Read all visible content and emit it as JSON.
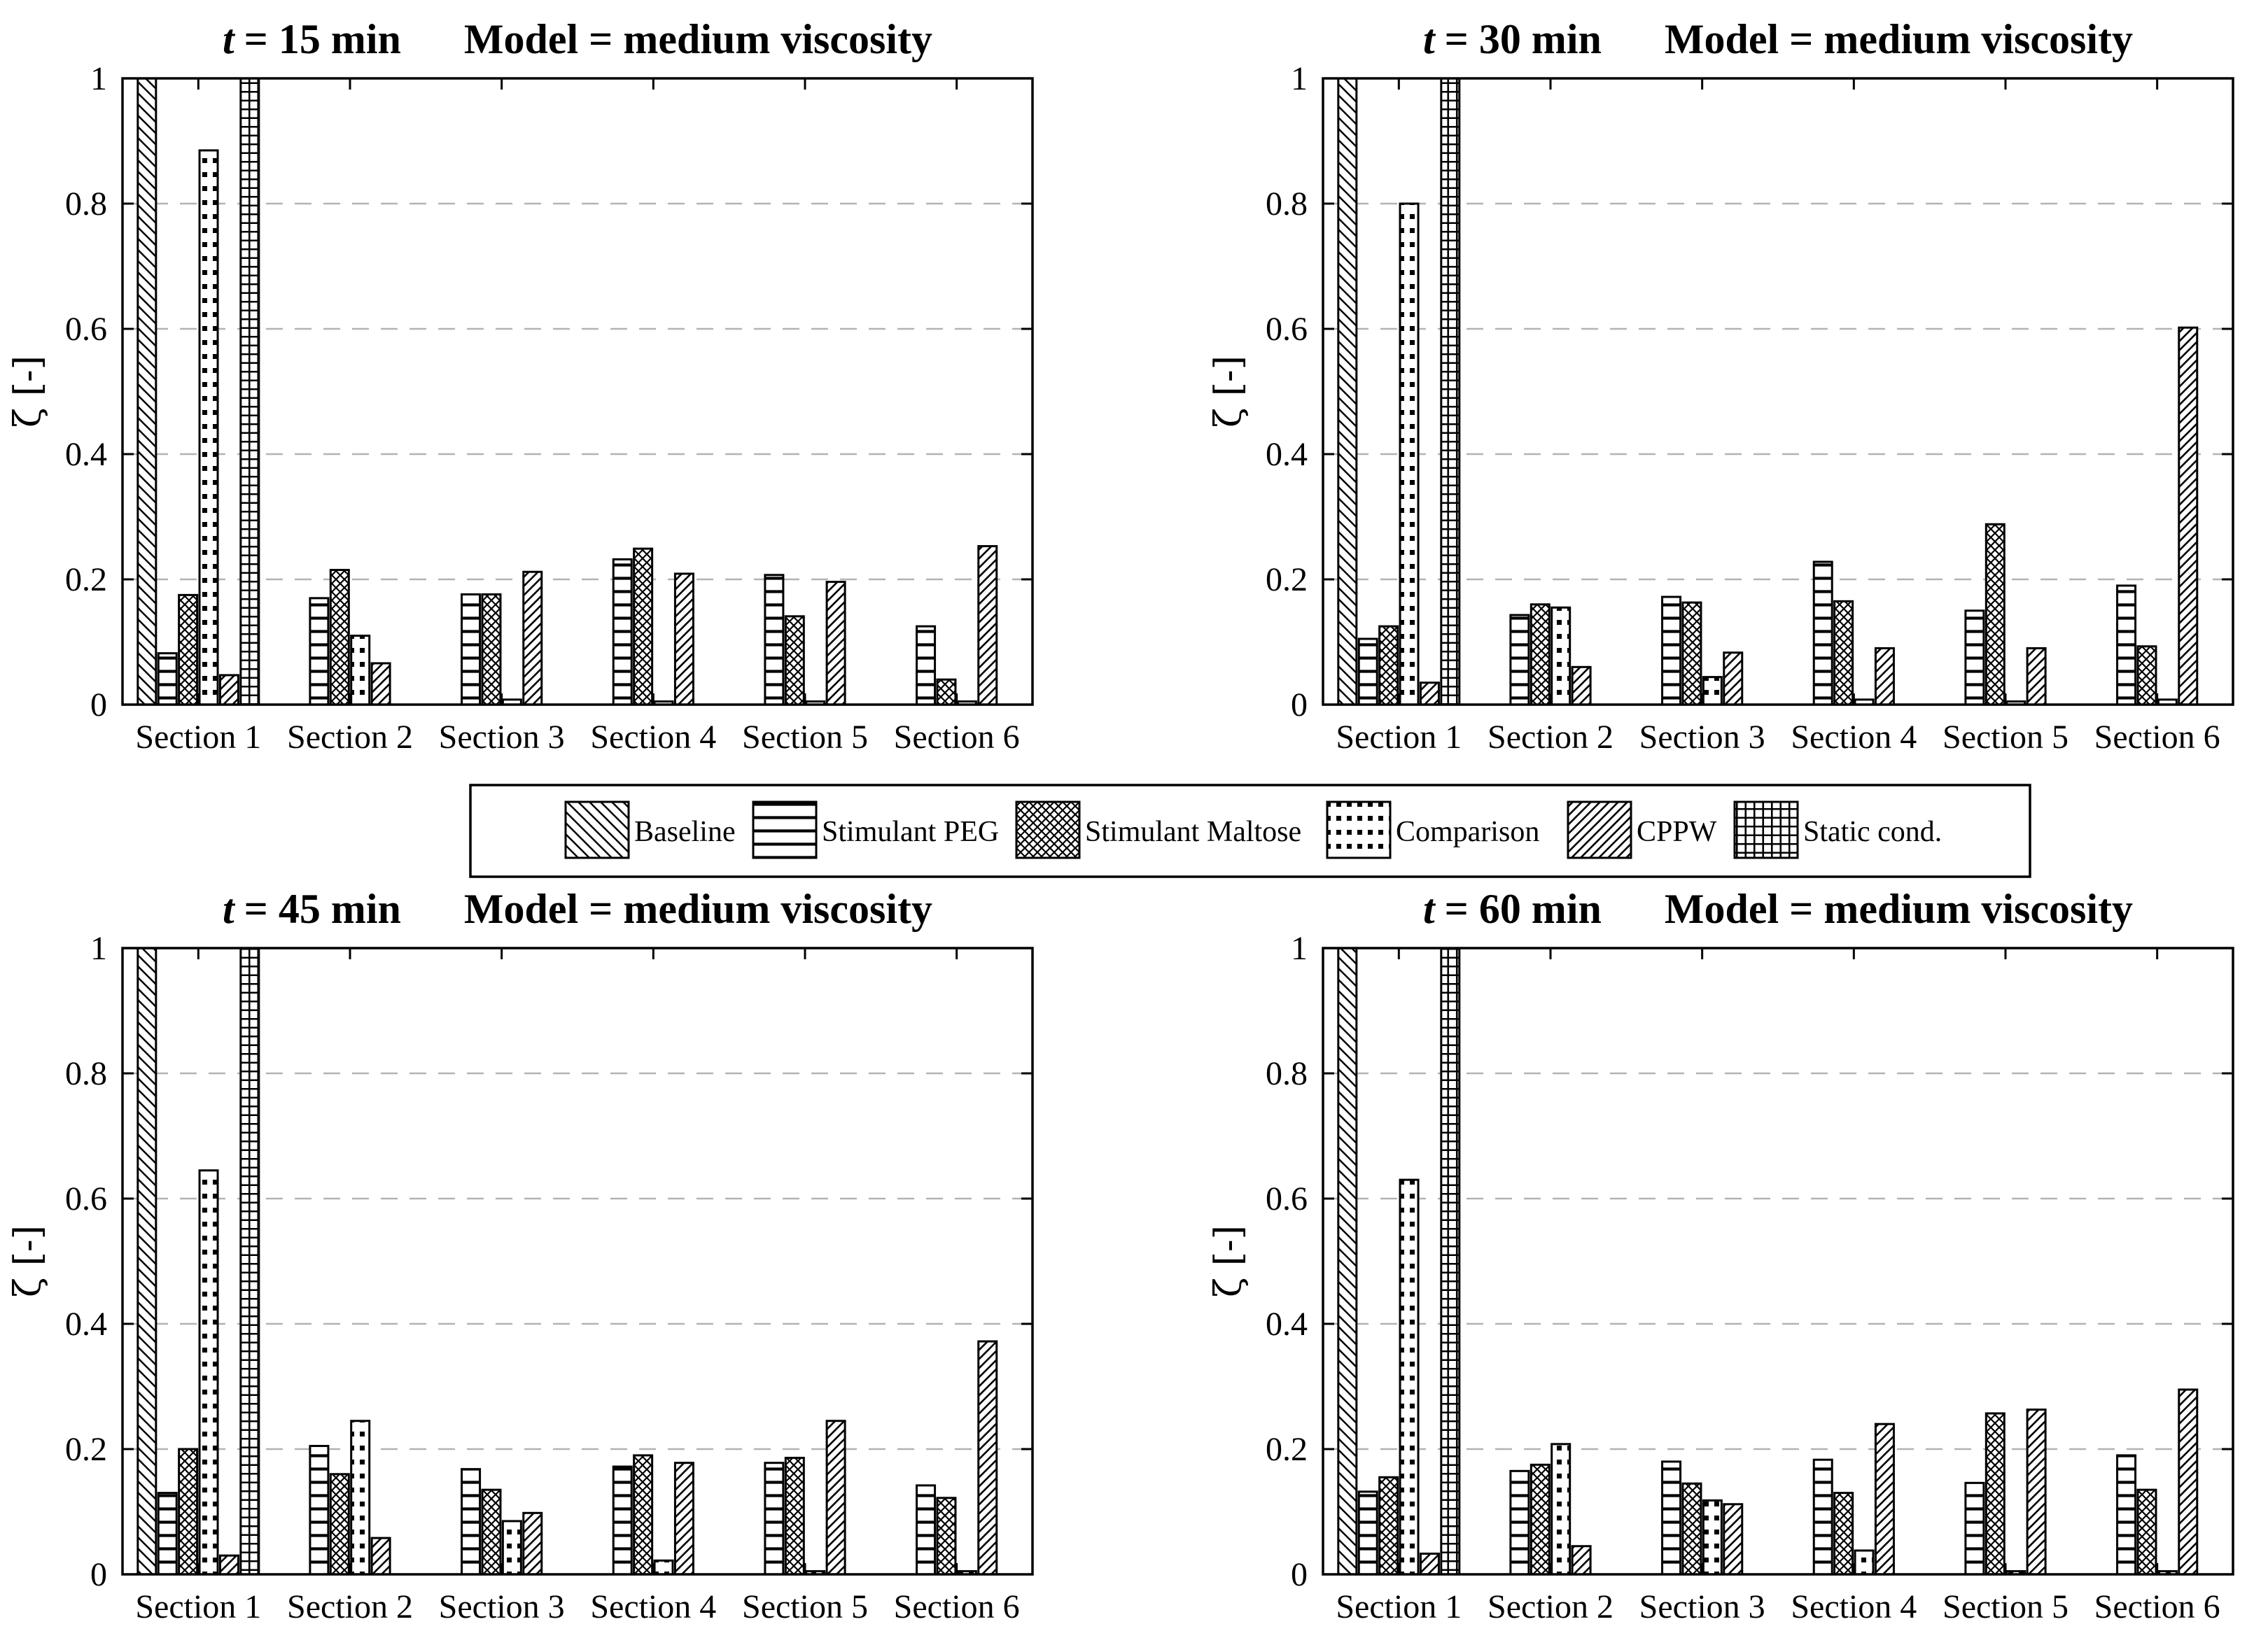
{
  "figure": {
    "background": "#ffffff",
    "ink_color": "#000000",
    "gridline_color": "#b3b3b3",
    "ylabel": "ζ [-]",
    "ytick_labels": [
      "0",
      "0.2",
      "0.4",
      "0.6",
      "0.8",
      "1"
    ],
    "ytick_values": [
      0,
      0.2,
      0.4,
      0.6,
      0.8,
      1
    ]
  },
  "legend": {
    "items": [
      {
        "label": "Baseline",
        "pattern": "baseline"
      },
      {
        "label": "Stimulant PEG",
        "pattern": "peg"
      },
      {
        "label": "Stimulant Maltose",
        "pattern": "maltose"
      },
      {
        "label": "Comparison",
        "pattern": "comparison"
      },
      {
        "label": "CPPW",
        "pattern": "cppw"
      },
      {
        "label": "Static cond.",
        "pattern": "static"
      }
    ]
  },
  "chart_data": [
    {
      "type": "bar",
      "title_italic": "t",
      "title_rest": "= 15 min",
      "title_model": "Model = medium viscosity",
      "xlabel": "",
      "ylabel": "ζ [-]",
      "ylim": [
        0,
        1
      ],
      "grid": "dashed horizontal at 0.2 steps",
      "legend_position": "shared center",
      "categories": [
        "Section 1",
        "Section 2",
        "Section 3",
        "Section 4",
        "Section 5",
        "Section 6"
      ],
      "series": [
        {
          "name": "Baseline",
          "pattern": "baseline",
          "values": [
            1,
            0,
            0,
            0,
            0,
            0
          ]
        },
        {
          "name": "Stimulant PEG",
          "pattern": "peg",
          "values": [
            0.082,
            0.17,
            0.176,
            0.232,
            0.207,
            0.125
          ]
        },
        {
          "name": "Stimulant Maltose",
          "pattern": "maltose",
          "values": [
            0.175,
            0.215,
            0.176,
            0.249,
            0.141,
            0.04
          ]
        },
        {
          "name": "Comparison",
          "pattern": "comparison",
          "values": [
            0.885,
            0.11,
            0.008,
            0.005,
            0.005,
            0.005
          ]
        },
        {
          "name": "CPPW",
          "pattern": "cppw",
          "values": [
            0.047,
            0.066,
            0.212,
            0.209,
            0.196,
            0.253
          ]
        },
        {
          "name": "Static cond.",
          "pattern": "static",
          "values": [
            1,
            0,
            0,
            0,
            0,
            0
          ]
        }
      ]
    },
    {
      "type": "bar",
      "title_italic": "t",
      "title_rest": "= 30 min",
      "title_model": "Model = medium viscosity",
      "xlabel": "",
      "ylabel": "ζ [-]",
      "ylim": [
        0,
        1
      ],
      "grid": "dashed horizontal at 0.2 steps",
      "legend_position": "shared center",
      "categories": [
        "Section 1",
        "Section 2",
        "Section 3",
        "Section 4",
        "Section 5",
        "Section 6"
      ],
      "series": [
        {
          "name": "Baseline",
          "pattern": "baseline",
          "values": [
            1,
            0,
            0,
            0,
            0,
            0
          ]
        },
        {
          "name": "Stimulant PEG",
          "pattern": "peg",
          "values": [
            0.105,
            0.143,
            0.172,
            0.228,
            0.15,
            0.19
          ]
        },
        {
          "name": "Stimulant Maltose",
          "pattern": "maltose",
          "values": [
            0.125,
            0.16,
            0.163,
            0.165,
            0.288,
            0.093
          ]
        },
        {
          "name": "Comparison",
          "pattern": "comparison",
          "values": [
            0.8,
            0.155,
            0.044,
            0.008,
            0.005,
            0.008
          ]
        },
        {
          "name": "CPPW",
          "pattern": "cppw",
          "values": [
            0.035,
            0.06,
            0.083,
            0.09,
            0.09,
            0.602
          ]
        },
        {
          "name": "Static cond.",
          "pattern": "static",
          "values": [
            1,
            0,
            0,
            0,
            0,
            0
          ]
        }
      ]
    },
    {
      "type": "bar",
      "title_italic": "t",
      "title_rest": "= 45 min",
      "title_model": "Model = medium viscosity",
      "xlabel": "",
      "ylabel": "ζ [-]",
      "ylim": [
        0,
        1
      ],
      "grid": "dashed horizontal at 0.2 steps",
      "legend_position": "shared center",
      "categories": [
        "Section 1",
        "Section 2",
        "Section 3",
        "Section 4",
        "Section 5",
        "Section 6"
      ],
      "series": [
        {
          "name": "Baseline",
          "pattern": "baseline",
          "values": [
            1,
            0,
            0,
            0,
            0,
            0
          ]
        },
        {
          "name": "Stimulant PEG",
          "pattern": "peg",
          "values": [
            0.13,
            0.205,
            0.168,
            0.172,
            0.178,
            0.142
          ]
        },
        {
          "name": "Stimulant Maltose",
          "pattern": "maltose",
          "values": [
            0.2,
            0.16,
            0.135,
            0.19,
            0.186,
            0.122
          ]
        },
        {
          "name": "Comparison",
          "pattern": "comparison",
          "values": [
            0.645,
            0.245,
            0.085,
            0.022,
            0.005,
            0.005
          ]
        },
        {
          "name": "CPPW",
          "pattern": "cppw",
          "values": [
            0.03,
            0.058,
            0.098,
            0.178,
            0.245,
            0.372
          ]
        },
        {
          "name": "Static cond.",
          "pattern": "static",
          "values": [
            1,
            0,
            0,
            0,
            0,
            0
          ]
        }
      ]
    },
    {
      "type": "bar",
      "title_italic": "t",
      "title_rest": "= 60 min",
      "title_model": "Model = medium viscosity",
      "xlabel": "",
      "ylabel": "ζ [-]",
      "ylim": [
        0,
        1
      ],
      "grid": "dashed horizontal at 0.2 steps",
      "legend_position": "shared center",
      "categories": [
        "Section 1",
        "Section 2",
        "Section 3",
        "Section 4",
        "Section 5",
        "Section 6"
      ],
      "series": [
        {
          "name": "Baseline",
          "pattern": "baseline",
          "values": [
            1,
            0,
            0,
            0,
            0,
            0
          ]
        },
        {
          "name": "Stimulant PEG",
          "pattern": "peg",
          "values": [
            0.132,
            0.165,
            0.18,
            0.183,
            0.146,
            0.19
          ]
        },
        {
          "name": "Stimulant Maltose",
          "pattern": "maltose",
          "values": [
            0.155,
            0.175,
            0.145,
            0.13,
            0.257,
            0.135
          ]
        },
        {
          "name": "Comparison",
          "pattern": "comparison",
          "values": [
            0.63,
            0.208,
            0.118,
            0.038,
            0.005,
            0.005
          ]
        },
        {
          "name": "CPPW",
          "pattern": "cppw",
          "values": [
            0.033,
            0.045,
            0.112,
            0.24,
            0.263,
            0.295
          ]
        },
        {
          "name": "Static cond.",
          "pattern": "static",
          "values": [
            1,
            0,
            0,
            0,
            0,
            0
          ]
        }
      ]
    }
  ]
}
